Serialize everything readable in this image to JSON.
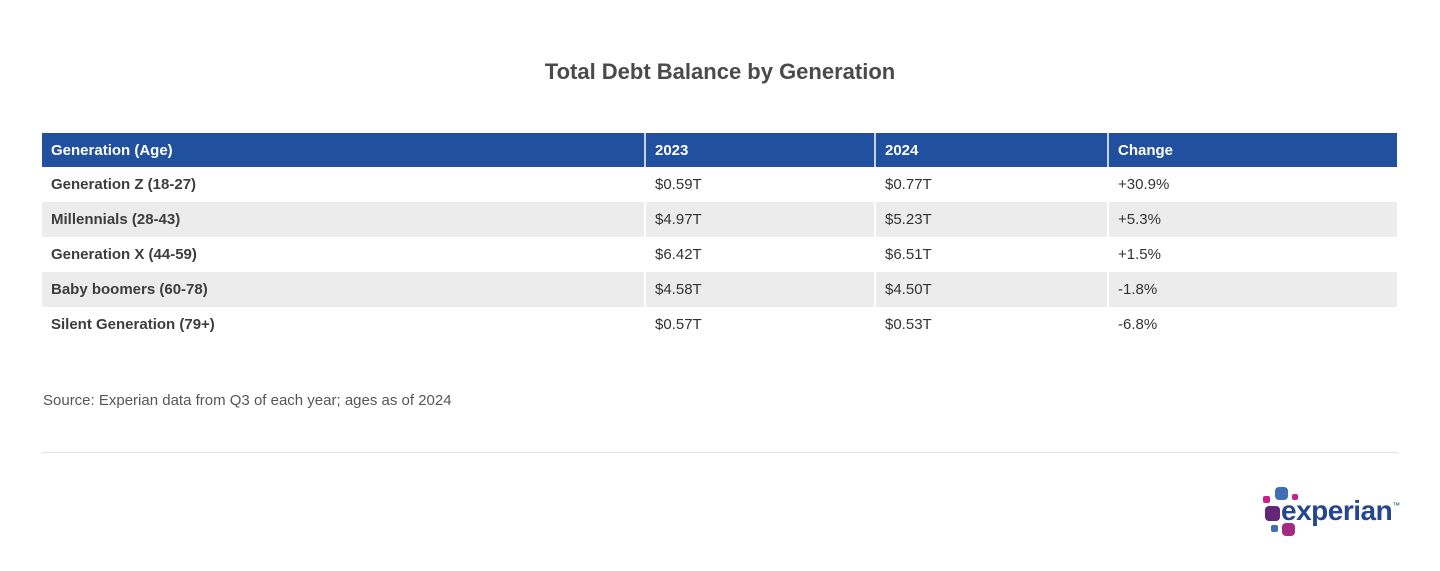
{
  "title": "Total Debt Balance by Generation",
  "colors": {
    "header_bg": "#21509e",
    "header_text": "#ffffff",
    "row_stripe": "#ececec",
    "title_text": "#4a4a4a",
    "body_text": "#333333",
    "source_text": "#565656",
    "logo_navy": "#26478d",
    "logo_purple": "#632678",
    "logo_blue": "#406eb3",
    "logo_magenta": "#c9218c",
    "logo_crimson": "#a42a82"
  },
  "table": {
    "columns": [
      "Generation (Age)",
      "2023",
      "2024",
      "Change"
    ],
    "rows": [
      {
        "generation": "Generation Z (18-27)",
        "y2023": "$0.59T",
        "y2024": "$0.77T",
        "change": "+30.9%"
      },
      {
        "generation": "Millennials (28-43)",
        "y2023": "$4.97T",
        "y2024": "$5.23T",
        "change": "+5.3%"
      },
      {
        "generation": "Generation X (44-59)",
        "y2023": "$6.42T",
        "y2024": "$6.51T",
        "change": "+1.5%"
      },
      {
        "generation": "Baby boomers (60-78)",
        "y2023": "$4.58T",
        "y2024": "$4.50T",
        "change": "-1.8%"
      },
      {
        "generation": "Silent Generation (79+)",
        "y2023": "$0.57T",
        "y2024": "$0.53T",
        "change": "-6.8%"
      }
    ]
  },
  "source": "Source: Experian data from Q3 of each year; ages as of 2024",
  "logo": {
    "text": "experian",
    "trademark": "™"
  },
  "chart_data": {
    "type": "table",
    "title": "Total Debt Balance by Generation",
    "columns": [
      "Generation (Age)",
      "2023",
      "2024",
      "Change"
    ],
    "rows": [
      [
        "Generation Z (18-27)",
        "$0.59T",
        "$0.77T",
        "+30.9%"
      ],
      [
        "Millennials (28-43)",
        "$4.97T",
        "$5.23T",
        "+5.3%"
      ],
      [
        "Generation X (44-59)",
        "$6.42T",
        "$6.51T",
        "+1.5%"
      ],
      [
        "Baby boomers (60-78)",
        "$4.58T",
        "$4.50T",
        "-1.8%"
      ],
      [
        "Silent Generation (79+)",
        "$0.57T",
        "$0.53T",
        "-6.8%"
      ]
    ],
    "values_unit": "trillion USD",
    "series": [
      {
        "name": "2023",
        "values": [
          0.59,
          4.97,
          6.42,
          4.58,
          0.57
        ]
      },
      {
        "name": "2024",
        "values": [
          0.77,
          5.23,
          6.51,
          4.5,
          0.53
        ]
      },
      {
        "name": "Change %",
        "values": [
          30.9,
          5.3,
          1.5,
          -1.8,
          -6.8
        ]
      }
    ],
    "source": "Source: Experian data from Q3 of each year; ages as of 2024"
  }
}
